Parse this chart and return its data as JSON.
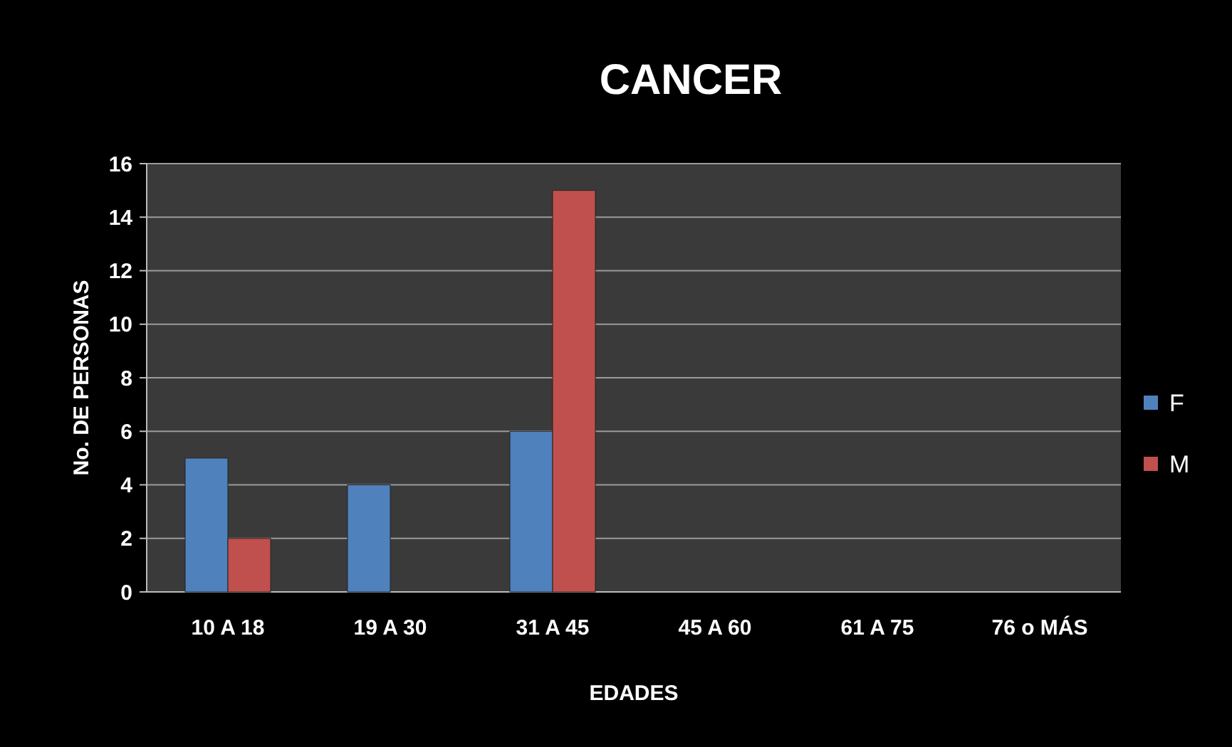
{
  "chart_data": {
    "type": "bar",
    "title": "CANCER",
    "xlabel": "EDADES",
    "ylabel": "No. DE PERSONAS",
    "categories": [
      "10 A 18",
      "19 A 30",
      "31 A 45",
      "45 A 60",
      "61 A 75",
      "76 o MÁS"
    ],
    "series": [
      {
        "name": "F",
        "color": "#4f81bd",
        "values": [
          5,
          4,
          6,
          0,
          0,
          0
        ]
      },
      {
        "name": "M",
        "color": "#c0504d",
        "values": [
          2,
          0,
          15,
          0,
          0,
          0
        ]
      }
    ],
    "ylim": [
      0,
      16
    ],
    "yticks": [
      0,
      2,
      4,
      6,
      8,
      10,
      12,
      14,
      16
    ],
    "grid": "y",
    "legend": "right"
  }
}
